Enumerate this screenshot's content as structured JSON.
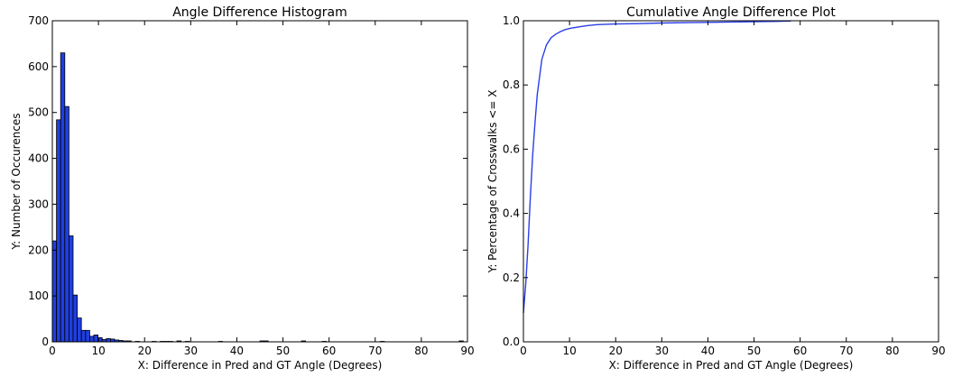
{
  "chart_data": [
    {
      "type": "bar",
      "title": "Angle Difference Histogram",
      "xlabel": "X: Difference in Pred and GT Angle (Degrees)",
      "ylabel": "Y: Number of Occurences",
      "xlim": [
        0,
        90
      ],
      "ylim": [
        0,
        700
      ],
      "xticks": [
        0,
        10,
        20,
        30,
        40,
        50,
        60,
        70,
        80,
        90
      ],
      "yticks": [
        0,
        100,
        200,
        300,
        400,
        500,
        600,
        700
      ],
      "bin_width": 0.9,
      "bin_starts": [
        0,
        0.9,
        1.8,
        2.7,
        3.6,
        4.5,
        5.4,
        6.3,
        7.2,
        8.1,
        9.0,
        9.9,
        10.8,
        11.7,
        12.6,
        13.5,
        14.4,
        15.3,
        16.2,
        18.0,
        21.6,
        23.4,
        24.3,
        25.2,
        27.0,
        28.8,
        36.0,
        45.0,
        45.9,
        54.0,
        58.5,
        71.1,
        88.2
      ],
      "values": [
        220,
        484,
        630,
        513,
        231,
        102,
        52,
        25,
        25,
        12,
        15,
        9,
        5,
        7,
        6,
        4,
        3,
        2,
        2,
        1,
        1,
        1,
        1,
        1,
        2,
        1,
        1,
        2,
        2,
        2,
        1,
        1,
        2
      ],
      "grid": false,
      "color": "#1f3fe0"
    },
    {
      "type": "line",
      "title": "Cumulative Angle Difference Plot",
      "xlabel": "X: Difference in Pred and GT Angle (Degrees)",
      "ylabel": "Y: Percentage of Crosswalks <= X",
      "xlim": [
        0,
        90
      ],
      "ylim": [
        0.0,
        1.0
      ],
      "xticks": [
        0,
        10,
        20,
        30,
        40,
        50,
        60,
        70,
        80,
        90
      ],
      "yticks": [
        0.0,
        0.2,
        0.4,
        0.6,
        0.8,
        1.0
      ],
      "ytick_labels": [
        "0.0",
        "0.2",
        "0.4",
        "0.6",
        "0.8",
        "1.0"
      ],
      "x": [
        0,
        0.5,
        1,
        1.5,
        2,
        2.5,
        3,
        4,
        5,
        6,
        7,
        8,
        9,
        10,
        12,
        14,
        16,
        18,
        20,
        25,
        30,
        40,
        50,
        55,
        58
      ],
      "y": [
        0.09,
        0.18,
        0.3,
        0.45,
        0.58,
        0.68,
        0.77,
        0.88,
        0.925,
        0.947,
        0.958,
        0.966,
        0.972,
        0.976,
        0.981,
        0.985,
        0.988,
        0.989,
        0.99,
        0.991,
        0.993,
        0.995,
        0.997,
        0.998,
        0.999
      ],
      "grid": false,
      "color": "#2b3fe6"
    }
  ]
}
